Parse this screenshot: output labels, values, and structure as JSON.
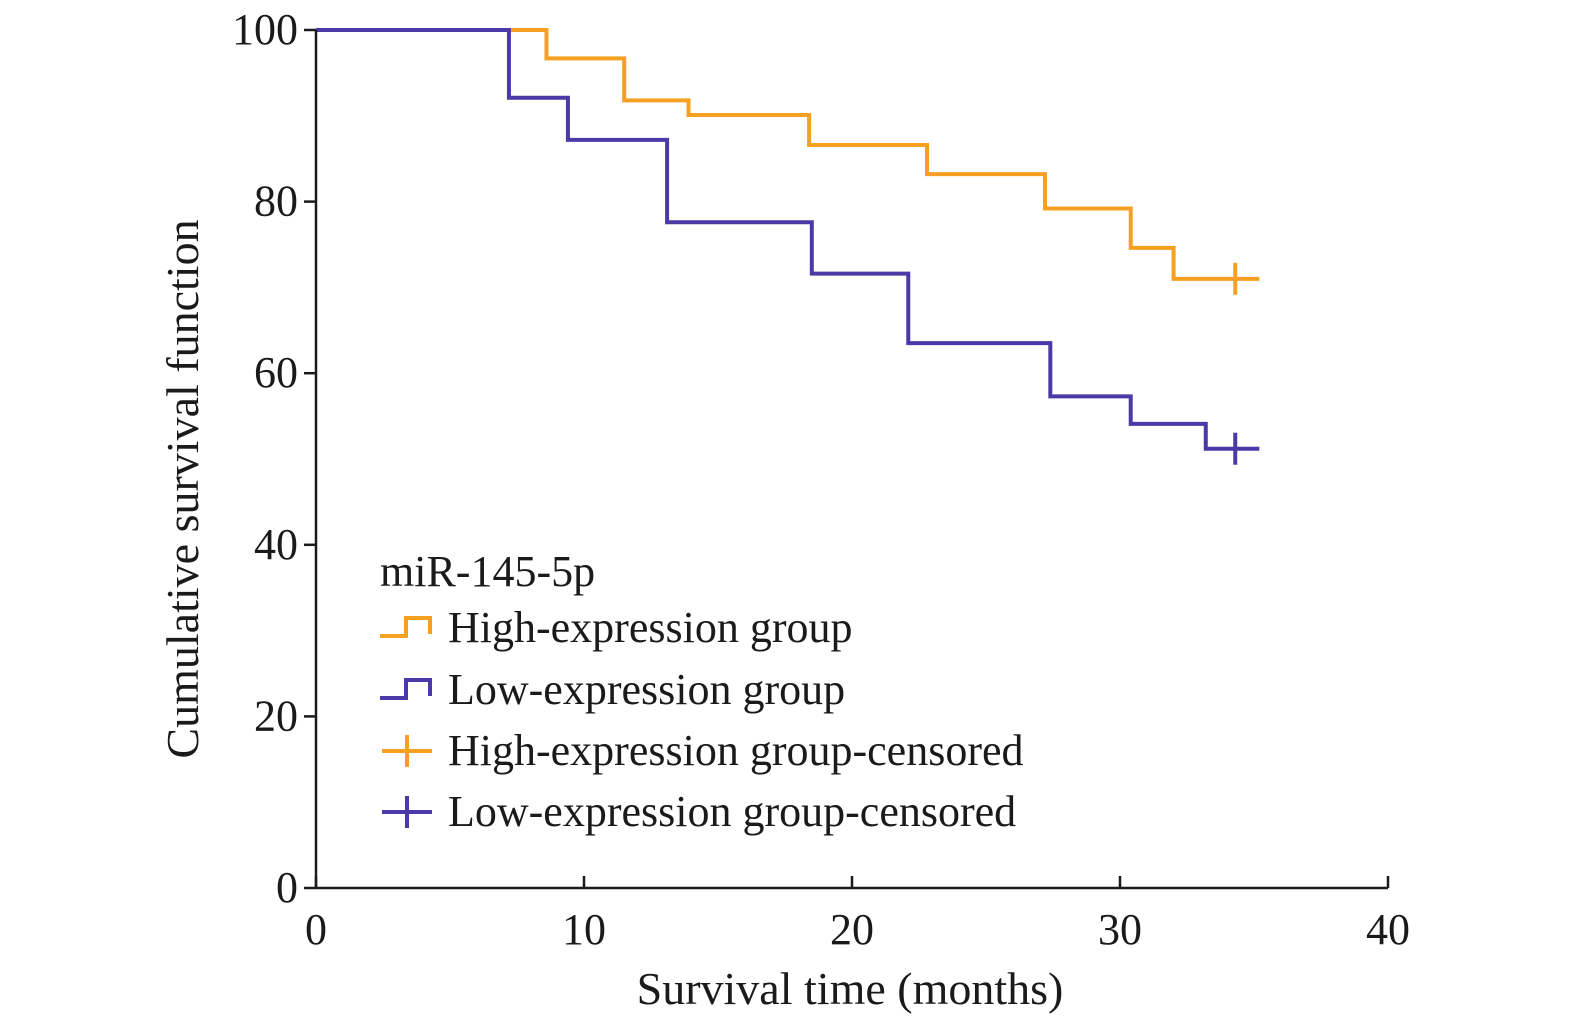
{
  "chart_data": {
    "type": "line",
    "subtype": "kaplan-meier step",
    "xlabel": "Survival time (months)",
    "ylabel": "Cumulative survival function",
    "xlim": [
      0,
      40
    ],
    "ylim": [
      0,
      100
    ],
    "xticks": [
      "0",
      "10",
      "20",
      "30",
      "40"
    ],
    "yticks": [
      "0",
      "20",
      "40",
      "60",
      "80",
      "100"
    ],
    "grid": false,
    "legend": {
      "title": "miR-145-5p",
      "placement": "lower-left",
      "entries": [
        "High-expression group",
        "Low-expression group",
        "High-expression group-censored",
        "Low-expression group-censored"
      ]
    },
    "series": [
      {
        "name": "High-expression group",
        "color": "#f5a020",
        "x": [
          0,
          8.6,
          11.5,
          13.9,
          18.4,
          22.8,
          27.2,
          30.4,
          32.0,
          35.2
        ],
        "y": [
          100,
          96.7,
          91.8,
          90.1,
          86.6,
          83.2,
          79.2,
          74.6,
          71.0,
          71.0
        ],
        "censored": [
          {
            "x": 34.3,
            "y": 71.0
          }
        ]
      },
      {
        "name": "Low-expression group",
        "color": "#4a3aa8",
        "x": [
          0,
          7.2,
          9.4,
          13.1,
          18.5,
          22.1,
          27.4,
          30.4,
          33.2,
          35.2
        ],
        "y": [
          100,
          92.1,
          87.2,
          77.6,
          71.6,
          63.5,
          57.3,
          54.1,
          51.2,
          51.2
        ],
        "censored": [
          {
            "x": 34.3,
            "y": 51.2
          }
        ]
      }
    ]
  }
}
